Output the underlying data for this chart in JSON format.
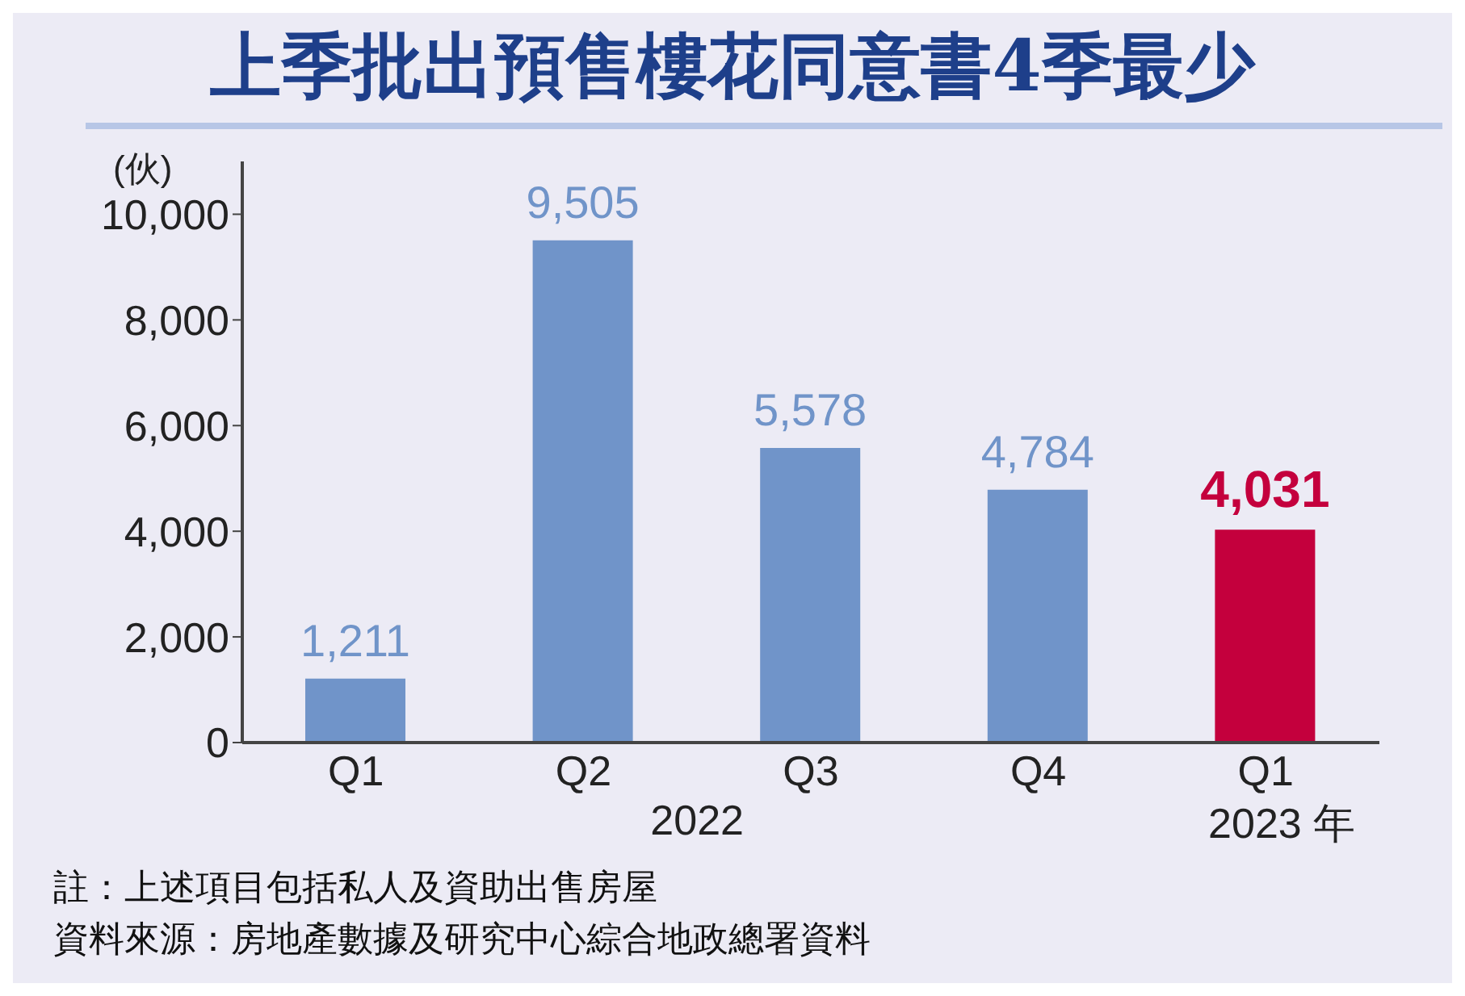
{
  "chart_data": {
    "type": "bar",
    "title": "上季批出預售樓花同意書4季最少",
    "ylabel": "(伙)",
    "categories": [
      "Q1",
      "Q2",
      "Q3",
      "Q4",
      "Q1"
    ],
    "values": [
      1211,
      9505,
      5578,
      4784,
      4031
    ],
    "colors": [
      "#7094c9",
      "#7094c9",
      "#7094c9",
      "#7094c9",
      "#c4003d"
    ],
    "ylim": [
      0,
      11000
    ],
    "yticks": [
      0,
      {
        "value": 2000,
        "label": "2,000"
      },
      {
        "value": 4000,
        "label": "4,000"
      },
      {
        "value": 6000,
        "label": "6,000"
      },
      {
        "value": 8000,
        "label": "8,000"
      },
      {
        "value": 10000,
        "label": "10,000"
      }
    ],
    "value_labels": [
      "1,211",
      "9,505",
      "5,578",
      "4,784",
      "4,031"
    ],
    "grid": false,
    "legend": false,
    "annotations": [
      "2022",
      "2023 年",
      "註：上述項目包括私人及資助出售房屋",
      "資料來源：房地產數據及研究中心綜合地政總署資料"
    ]
  }
}
